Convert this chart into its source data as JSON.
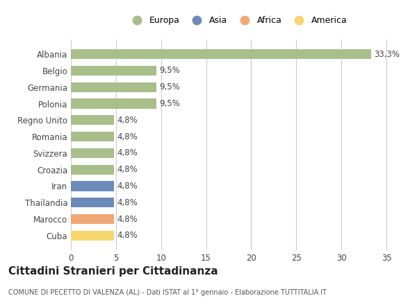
{
  "categories": [
    "Cuba",
    "Marocco",
    "Thailandia",
    "Iran",
    "Croazia",
    "Svizzera",
    "Romania",
    "Regno Unito",
    "Polonia",
    "Germania",
    "Belgio",
    "Albania"
  ],
  "values": [
    4.8,
    4.8,
    4.8,
    4.8,
    4.8,
    4.8,
    4.8,
    4.8,
    9.5,
    9.5,
    9.5,
    33.3
  ],
  "colors": [
    "#f5d76e",
    "#f0a875",
    "#6b8cba",
    "#6b8cba",
    "#a8bf8a",
    "#a8bf8a",
    "#a8bf8a",
    "#a8bf8a",
    "#a8bf8a",
    "#a8bf8a",
    "#a8bf8a",
    "#a8bf8a"
  ],
  "labels": [
    "4,8%",
    "4,8%",
    "4,8%",
    "4,8%",
    "4,8%",
    "4,8%",
    "4,8%",
    "4,8%",
    "9,5%",
    "9,5%",
    "9,5%",
    "33,3%"
  ],
  "legend_labels": [
    "Europa",
    "Asia",
    "Africa",
    "America"
  ],
  "legend_colors": [
    "#a8bf8a",
    "#6b8cba",
    "#f0a875",
    "#f5d76e"
  ],
  "title": "Cittadini Stranieri per Cittadinanza",
  "subtitle": "COMUNE DI PECETTO DI VALENZA (AL) - Dati ISTAT al 1° gennaio - Elaborazione TUTTITALIA.IT",
  "xlim": [
    0,
    37
  ],
  "xticks": [
    0,
    5,
    10,
    15,
    20,
    25,
    30,
    35
  ],
  "bg_color": "#ffffff",
  "grid_color": "#cccccc"
}
